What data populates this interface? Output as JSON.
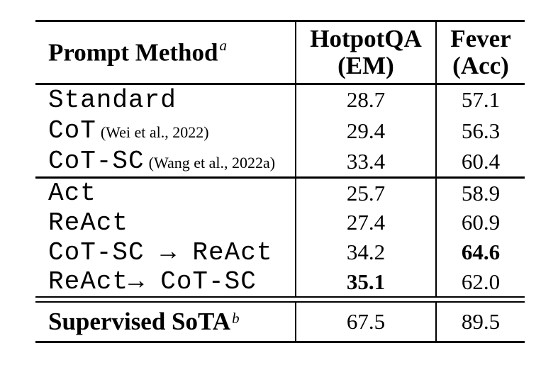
{
  "table": {
    "header": {
      "method_label": "Prompt Method",
      "method_sup": "a",
      "col_hotpotqa_line1": "HotpotQA",
      "col_hotpotqa_line2": "(EM)",
      "col_fever_line1": "Fever",
      "col_fever_line2": "(Acc)"
    },
    "groups": [
      {
        "rows": [
          {
            "method": "Standard",
            "citation": "",
            "hotpotqa": "28.7",
            "fever": "57.1",
            "bold_hotpotqa": false,
            "bold_fever": false
          },
          {
            "method": "CoT",
            "citation": "(Wei et al., 2022)",
            "hotpotqa": "29.4",
            "fever": "56.3",
            "bold_hotpotqa": false,
            "bold_fever": false
          },
          {
            "method": "CoT-SC",
            "citation": "(Wang et al., 2022a)",
            "hotpotqa": "33.4",
            "fever": "60.4",
            "bold_hotpotqa": false,
            "bold_fever": false
          }
        ]
      },
      {
        "rows": [
          {
            "method": "Act",
            "citation": "",
            "hotpotqa": "25.7",
            "fever": "58.9",
            "bold_hotpotqa": false,
            "bold_fever": false
          },
          {
            "method": "ReAct",
            "citation": "",
            "hotpotqa": "27.4",
            "fever": "60.9",
            "bold_hotpotqa": false,
            "bold_fever": false
          },
          {
            "method": "CoT-SC → ReAct",
            "citation": "",
            "hotpotqa": "34.2",
            "fever": "64.6",
            "bold_hotpotqa": false,
            "bold_fever": true
          },
          {
            "method": "ReAct→ CoT-SC",
            "citation": "",
            "hotpotqa": "35.1",
            "fever": "62.0",
            "bold_hotpotqa": true,
            "bold_fever": false
          }
        ]
      }
    ],
    "footer": {
      "label": "Supervised SoTA",
      "sup": "b",
      "hotpotqa": "67.5",
      "fever": "89.5"
    }
  },
  "colors": {
    "text": "#000000",
    "background": "#ffffff",
    "rule": "#000000"
  }
}
